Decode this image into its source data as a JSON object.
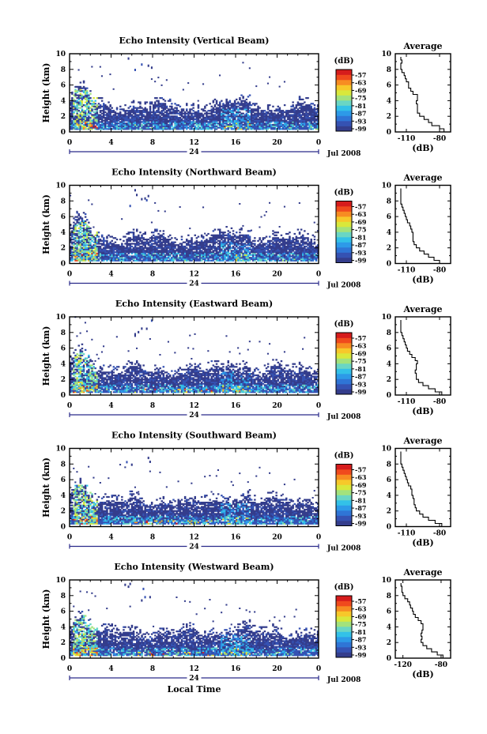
{
  "figure": {
    "xlabel_bottom": "Local Time",
    "date_label": "Jul 2008",
    "colorbar_unit": "(dB)",
    "colorbar_ticks": [
      "-57",
      "-63",
      "-69",
      "-75",
      "-81",
      "-87",
      "-93",
      "-99"
    ],
    "colorbar_colors": [
      "#343d8c",
      "#3552b3",
      "#2f75d6",
      "#2d9ae8",
      "#33c1e8",
      "#6ad6c4",
      "#a3e27c",
      "#d9e83b",
      "#f7c82a",
      "#f78c22",
      "#f04a1d",
      "#d61c1c"
    ]
  },
  "chart_data": [
    {
      "type": "heatmap",
      "title": "Echo Intensity (Vertical Beam)",
      "ylabel": "Height (km)",
      "xlabel": "",
      "x_ticks": [
        "0",
        "4",
        "8",
        "12",
        "16",
        "20",
        "0"
      ],
      "y_ticks": [
        "0",
        "2",
        "4",
        "6",
        "8",
        "10"
      ],
      "xlim": [
        0,
        24
      ],
      "ylim": [
        0,
        10
      ],
      "day_marker": "24",
      "colorbar_label": "(dB)",
      "colorbar_range": [
        -99,
        -57
      ],
      "profile": {
        "title": "Average",
        "xlabel": "(dB)",
        "x_ticks": [
          "-110",
          "-80"
        ],
        "y_ticks": [
          "0",
          "2",
          "4",
          "6",
          "8",
          "10"
        ],
        "xlim": [
          -120,
          -70
        ],
        "ylim": [
          0,
          10
        ],
        "height": [
          0.2,
          0.6,
          1.0,
          1.4,
          1.8,
          2.2,
          2.6,
          3.0,
          3.4,
          3.8,
          4.2,
          4.6,
          5.0,
          5.4,
          5.8,
          6.2,
          6.6,
          7.0,
          7.4,
          7.8,
          8.2,
          8.6,
          9.0,
          9.4
        ],
        "values": [
          -76,
          -80,
          -87,
          -90,
          -94,
          -98,
          -100,
          -100,
          -100,
          -101,
          -100,
          -100,
          -104,
          -106,
          -108,
          -108,
          -110,
          -111,
          -112,
          -114,
          -115,
          -115,
          -114,
          -115
        ]
      }
    },
    {
      "type": "heatmap",
      "title": "Echo Intensity (Northward Beam)",
      "ylabel": "Height (km)",
      "xlabel": "",
      "x_ticks": [
        "0",
        "4",
        "8",
        "12",
        "16",
        "20",
        "0"
      ],
      "y_ticks": [
        "0",
        "2",
        "4",
        "6",
        "8",
        "10"
      ],
      "xlim": [
        0,
        24
      ],
      "ylim": [
        0,
        10
      ],
      "day_marker": "24",
      "colorbar_label": "(dB)",
      "colorbar_range": [
        -99,
        -57
      ],
      "profile": {
        "title": "Average",
        "xlabel": "(dB)",
        "x_ticks": [
          "-110",
          "-80"
        ],
        "y_ticks": [
          "0",
          "2",
          "4",
          "6",
          "8",
          "10"
        ],
        "xlim": [
          -120,
          -70
        ],
        "ylim": [
          0,
          10
        ],
        "height": [
          0.2,
          0.6,
          1.0,
          1.4,
          1.8,
          2.2,
          2.6,
          3.0,
          3.4,
          3.8,
          4.2,
          4.6,
          5.0,
          5.4,
          5.8,
          6.2,
          6.6,
          7.0,
          7.4,
          7.8,
          8.2,
          8.6,
          9.0,
          9.4
        ],
        "values": [
          -80,
          -85,
          -90,
          -94,
          -98,
          -101,
          -103,
          -104,
          -104,
          -104,
          -105,
          -106,
          -107,
          -109,
          -110,
          -111,
          -112,
          -113,
          -114,
          -115,
          -115,
          -115,
          -115,
          -115
        ]
      }
    },
    {
      "type": "heatmap",
      "title": "Echo Intensity (Eastward Beam)",
      "ylabel": "Height (km)",
      "xlabel": "",
      "x_ticks": [
        "0",
        "4",
        "8",
        "12",
        "16",
        "20",
        "0"
      ],
      "y_ticks": [
        "0",
        "2",
        "4",
        "6",
        "8",
        "10"
      ],
      "xlim": [
        0,
        24
      ],
      "ylim": [
        0,
        10
      ],
      "day_marker": "24",
      "colorbar_label": "(dB)",
      "colorbar_range": [
        -99,
        -57
      ],
      "profile": {
        "title": "Average",
        "xlabel": "(dB)",
        "x_ticks": [
          "-110",
          "-80"
        ],
        "y_ticks": [
          "0",
          "2",
          "4",
          "6",
          "8",
          "10"
        ],
        "xlim": [
          -120,
          -70
        ],
        "ylim": [
          0,
          10
        ],
        "height": [
          0.2,
          0.6,
          1.0,
          1.4,
          1.8,
          2.2,
          2.6,
          3.0,
          3.4,
          3.8,
          4.2,
          4.6,
          5.0,
          5.4,
          5.8,
          6.2,
          6.6,
          7.0,
          7.4,
          7.8,
          8.2,
          8.6,
          9.0,
          9.4
        ],
        "values": [
          -78,
          -84,
          -90,
          -95,
          -99,
          -101,
          -101,
          -102,
          -101,
          -101,
          -100,
          -102,
          -105,
          -107,
          -109,
          -110,
          -111,
          -112,
          -113,
          -114,
          -115,
          -115,
          -115,
          -115
        ]
      }
    },
    {
      "type": "heatmap",
      "title": "Echo Intensity (Southward Beam)",
      "ylabel": "Height (km)",
      "xlabel": "",
      "x_ticks": [
        "0",
        "4",
        "8",
        "12",
        "16",
        "20",
        "0"
      ],
      "y_ticks": [
        "0",
        "2",
        "4",
        "6",
        "8",
        "10"
      ],
      "xlim": [
        0,
        24
      ],
      "ylim": [
        0,
        10
      ],
      "day_marker": "24",
      "colorbar_label": "(dB)",
      "colorbar_range": [
        -99,
        -57
      ],
      "profile": {
        "title": "Average",
        "xlabel": "(dB)",
        "x_ticks": [
          "-110",
          "-80"
        ],
        "y_ticks": [
          "0",
          "2",
          "4",
          "6",
          "8",
          "10"
        ],
        "xlim": [
          -120,
          -70
        ],
        "ylim": [
          0,
          10
        ],
        "height": [
          0.2,
          0.6,
          1.0,
          1.4,
          1.8,
          2.2,
          2.6,
          3.0,
          3.4,
          3.8,
          4.2,
          4.6,
          5.0,
          5.4,
          5.8,
          6.2,
          6.6,
          7.0,
          7.4,
          7.8,
          8.2,
          8.6,
          9.0,
          9.4
        ],
        "values": [
          -78,
          -84,
          -90,
          -95,
          -98,
          -101,
          -102,
          -103,
          -103,
          -104,
          -105,
          -105,
          -106,
          -108,
          -109,
          -110,
          -111,
          -112,
          -113,
          -114,
          -115,
          -115,
          -115,
          -115
        ]
      }
    },
    {
      "type": "heatmap",
      "title": "Echo Intensity (Westward Beam)",
      "ylabel": "Height (km)",
      "xlabel": "Local Time",
      "x_ticks": [
        "0",
        "4",
        "8",
        "12",
        "16",
        "20",
        "0"
      ],
      "y_ticks": [
        "0",
        "2",
        "4",
        "6",
        "8",
        "10"
      ],
      "xlim": [
        0,
        24
      ],
      "ylim": [
        0,
        10
      ],
      "day_marker": "24",
      "colorbar_label": "(dB)",
      "colorbar_range": [
        -99,
        -57
      ],
      "profile": {
        "title": "Average",
        "xlabel": "(dB)",
        "x_ticks": [
          "-120",
          "-80"
        ],
        "y_ticks": [
          "0",
          "2",
          "4",
          "6",
          "8",
          "10"
        ],
        "xlim": [
          -128,
          -70
        ],
        "ylim": [
          0,
          10
        ],
        "height": [
          0.2,
          0.6,
          1.0,
          1.4,
          1.8,
          2.2,
          2.6,
          3.0,
          3.4,
          3.8,
          4.2,
          4.6,
          5.0,
          5.4,
          5.8,
          6.2,
          6.6,
          7.0,
          7.4,
          7.8,
          8.2,
          8.6,
          9.0,
          9.4
        ],
        "values": [
          -78,
          -84,
          -90,
          -95,
          -99,
          -101,
          -100,
          -101,
          -100,
          -99,
          -99,
          -101,
          -104,
          -107,
          -109,
          -110,
          -112,
          -113,
          -115,
          -118,
          -120,
          -121,
          -121,
          -122
        ]
      }
    }
  ]
}
